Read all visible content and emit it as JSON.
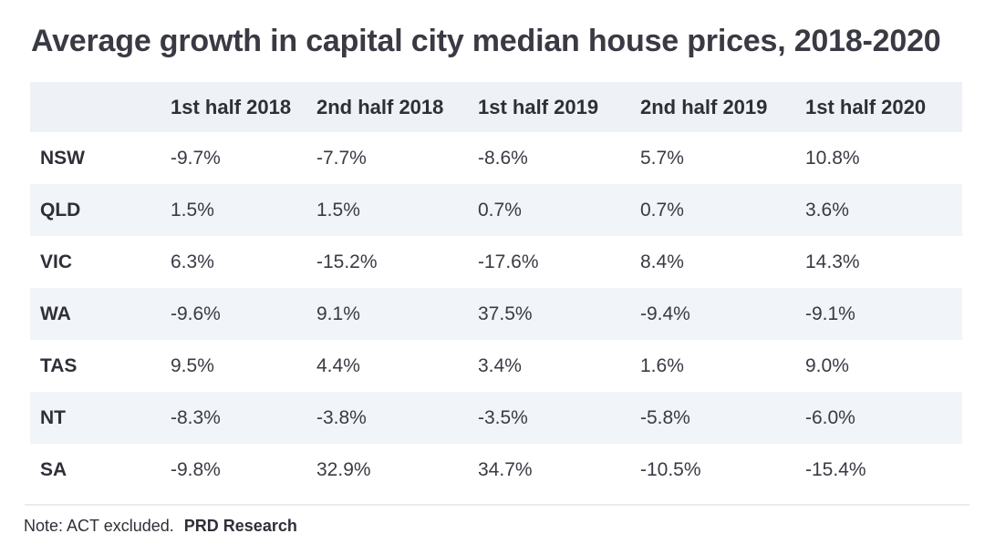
{
  "chart_data": {
    "type": "table",
    "title": "Average growth in capital city median house prices, 2018-2020",
    "columns": [
      "1st half 2018",
      "2nd half 2018",
      "1st half 2019",
      "2nd half 2019",
      "1st half 2020"
    ],
    "rows": [
      {
        "state": "NSW",
        "values": [
          "-9.7%",
          "-7.7%",
          "-8.6%",
          "5.7%",
          "10.8%"
        ]
      },
      {
        "state": "QLD",
        "values": [
          "1.5%",
          "1.5%",
          "0.7%",
          "0.7%",
          "3.6%"
        ]
      },
      {
        "state": "VIC",
        "values": [
          "6.3%",
          "-15.2%",
          "-17.6%",
          "8.4%",
          "14.3%"
        ]
      },
      {
        "state": "WA",
        "values": [
          "-9.6%",
          "9.1%",
          "37.5%",
          "-9.4%",
          "-9.1%"
        ]
      },
      {
        "state": "TAS",
        "values": [
          "9.5%",
          "4.4%",
          "3.4%",
          "1.6%",
          "9.0%"
        ]
      },
      {
        "state": "NT",
        "values": [
          "-8.3%",
          "-3.8%",
          "-3.5%",
          "-5.8%",
          "-6.0%"
        ]
      },
      {
        "state": "SA",
        "values": [
          "-9.8%",
          "32.9%",
          "34.7%",
          "-10.5%",
          "-15.4%"
        ]
      }
    ],
    "note": "Note: ACT excluded.",
    "source": "PRD Research"
  },
  "colors": {
    "header_bg": "#eef1f6",
    "shaded_row_bg": "#f1f4f8",
    "text": "#2f2f38"
  }
}
